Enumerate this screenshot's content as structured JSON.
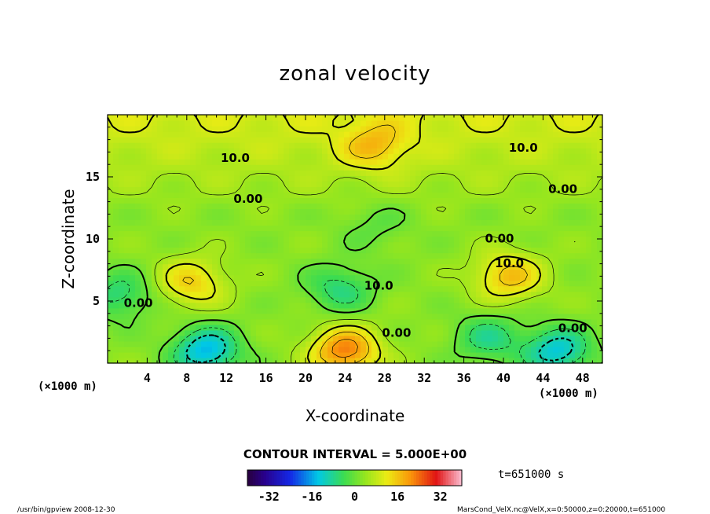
{
  "chart_data": {
    "type": "heatmap",
    "title": "zonal velocity",
    "xlabel": "X-coordinate",
    "ylabel": "Z-coordinate",
    "x_unit": "(×1000 m)",
    "y_unit": "(×1000 m)",
    "xlim": [
      0,
      50
    ],
    "ylim": [
      0,
      20
    ],
    "x_ticks": [
      4,
      8,
      12,
      16,
      20,
      24,
      28,
      32,
      36,
      40,
      44,
      48
    ],
    "y_ticks": [
      5,
      10,
      15
    ],
    "contour_interval_label": "CONTOUR INTERVAL = 5.000E+00",
    "contour_labels": [
      {
        "text": "10.0",
        "x": 12.9,
        "z": 16.5
      },
      {
        "text": "10.0",
        "x": 42.0,
        "z": 17.3
      },
      {
        "text": "0.00",
        "x": 14.2,
        "z": 13.2
      },
      {
        "text": "0.00",
        "x": 46.0,
        "z": 14.0
      },
      {
        "text": "0.00",
        "x": 39.6,
        "z": 10.0
      },
      {
        "text": "10.0",
        "x": 40.6,
        "z": 8.0
      },
      {
        "text": "0.00",
        "x": 3.1,
        "z": 4.8
      },
      {
        "text": "10.0",
        "x": 27.4,
        "z": 6.2
      },
      {
        "text": "0.00",
        "x": 29.2,
        "z": 2.4
      },
      {
        "text": "0.00",
        "x": 47.0,
        "z": 2.8
      }
    ],
    "features": [
      {
        "x": 8.5,
        "z": 6.5,
        "u": 12
      },
      {
        "x": 40.5,
        "z": 7.0,
        "u": 14
      },
      {
        "x": 24.0,
        "z": 1.0,
        "u": 20
      },
      {
        "x": 23.5,
        "z": 6.0,
        "u": -10
      },
      {
        "x": 10.0,
        "z": 1.0,
        "u": -18
      },
      {
        "x": 45.5,
        "z": 1.0,
        "u": -16
      },
      {
        "x": 38.5,
        "z": 2.0,
        "u": -10
      },
      {
        "x": 1.2,
        "z": 5.5,
        "u": -10
      },
      {
        "x": 27.0,
        "z": 17.5,
        "u": 10
      },
      {
        "x": 27.0,
        "z": 11.0,
        "u": -4
      }
    ],
    "colorbar": {
      "ticks": [
        -32,
        -16,
        0,
        16,
        32
      ],
      "range": [
        -40,
        40
      ],
      "colormap": "rainbow"
    },
    "time_label": "t=651000 s",
    "footer_left": "/usr/bin/gpview  2008-12-30",
    "footer_right": "MarsCond_VelX.nc@VelX,x=0:50000,z=0:20000,t=651000"
  }
}
